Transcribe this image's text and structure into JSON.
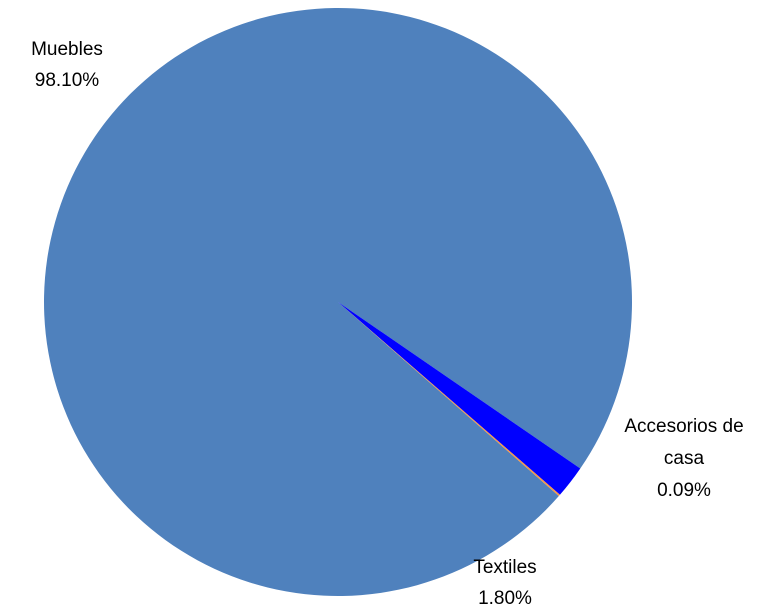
{
  "chart_data": {
    "type": "pie",
    "title": "",
    "slices": [
      {
        "name": "Muebles",
        "value": 98.1,
        "label": "98.10%",
        "color": "#4f81bd"
      },
      {
        "name": "Textiles",
        "value": 1.8,
        "label": "1.80%",
        "color": "#0000ff"
      },
      {
        "name": "Accesorios de casa",
        "value": 0.09,
        "label": "0.09%",
        "color": "#f79646"
      }
    ],
    "legend": "none",
    "label_style": "name-and-percent"
  },
  "labels": {
    "muebles": {
      "name": "Muebles",
      "pct": "98.10%"
    },
    "textiles": {
      "name": "Textiles",
      "pct": "1.80%"
    },
    "accesorios": {
      "line1": "Accesorios de",
      "line2": "casa",
      "pct": "0.09%"
    }
  }
}
